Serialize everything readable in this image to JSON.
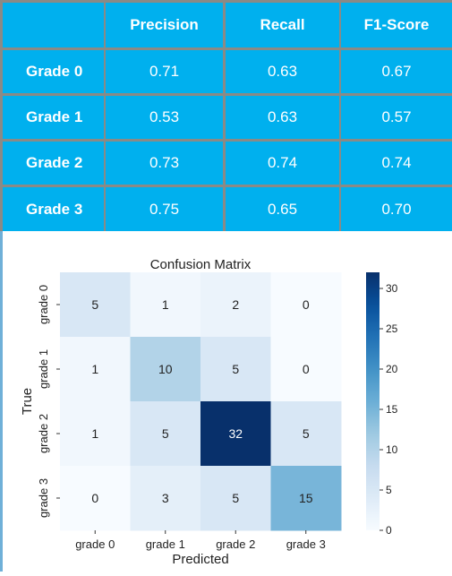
{
  "table": {
    "columns": [
      "",
      "Precision",
      "Recall",
      "F1-Score"
    ],
    "rows": [
      {
        "label": "Grade 0",
        "values": [
          "0.71",
          "0.63",
          "0.67"
        ]
      },
      {
        "label": "Grade 1",
        "values": [
          "0.53",
          "0.63",
          "0.57"
        ]
      },
      {
        "label": "Grade 2",
        "values": [
          "0.73",
          "0.74",
          "0.74"
        ]
      },
      {
        "label": "Grade 3",
        "values": [
          "0.75",
          "0.65",
          "0.70"
        ]
      }
    ],
    "colors": {
      "cell": "#00b0ee",
      "grid": "#8a8a86",
      "text": "#ffffff"
    }
  },
  "chart_data": {
    "type": "heatmap",
    "title": "Confusion Matrix",
    "xlabel": "Predicted",
    "ylabel": "True",
    "x_categories": [
      "grade 0",
      "grade 1",
      "grade 2",
      "grade 3"
    ],
    "y_categories": [
      "grade 0",
      "grade 1",
      "grade 2",
      "grade 3"
    ],
    "values": [
      [
        5,
        1,
        2,
        0
      ],
      [
        1,
        10,
        5,
        0
      ],
      [
        1,
        5,
        32,
        5
      ],
      [
        0,
        3,
        5,
        15
      ]
    ],
    "colorbar": {
      "range": [
        0,
        32
      ],
      "ticks": [
        0,
        5,
        10,
        15,
        20,
        25,
        30
      ]
    },
    "colormap": "Blues",
    "colors": {
      "low": "#f7fbff",
      "high": "#08306b"
    }
  }
}
